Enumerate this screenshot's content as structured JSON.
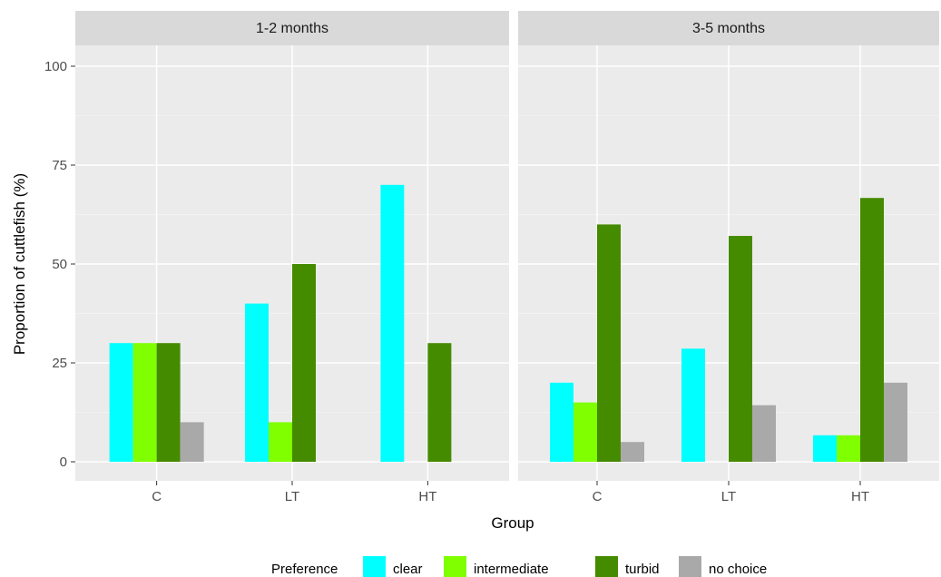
{
  "chart_data": {
    "type": "bar",
    "xlabel": "Group",
    "ylabel": "Proportion of cuttlefish (%)",
    "ylim": [
      0,
      105
    ],
    "yticks": [
      "0",
      "25",
      "50",
      "75",
      "100"
    ],
    "ytick_values": [
      0,
      25,
      50,
      75,
      100
    ],
    "categories": [
      "C",
      "LT",
      "HT"
    ],
    "grid": true,
    "legend_position": "bottom",
    "legend_title": "Preference",
    "series_colors": {
      "clear": "#00FFFF",
      "intermediate": "#7FFF00",
      "turbid": "#458B00",
      "no choice": "#A9A9A9"
    },
    "panels": [
      {
        "label": "1-2 months",
        "series": [
          {
            "name": "clear",
            "values": [
              30,
              40,
              70
            ]
          },
          {
            "name": "intermediate",
            "values": [
              30,
              10,
              0
            ]
          },
          {
            "name": "turbid",
            "values": [
              30,
              50,
              30
            ]
          },
          {
            "name": "no choice",
            "values": [
              10,
              0,
              0
            ]
          }
        ]
      },
      {
        "label": "3-5 months",
        "series": [
          {
            "name": "clear",
            "values": [
              20,
              28.6,
              6.7
            ]
          },
          {
            "name": "intermediate",
            "values": [
              15,
              0,
              6.7
            ]
          },
          {
            "name": "turbid",
            "values": [
              60,
              57.1,
              66.7
            ]
          },
          {
            "name": "no choice",
            "values": [
              5,
              14.3,
              20
            ]
          }
        ]
      }
    ]
  }
}
